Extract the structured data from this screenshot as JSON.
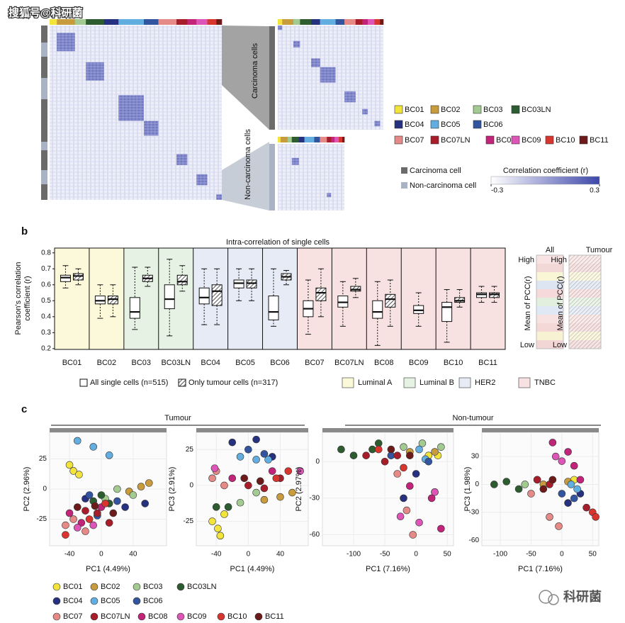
{
  "watermark": "搜狐号@科研菌",
  "panel_a": {
    "clusters": [
      "Carcinoma cells",
      "Non-carcinoma cells"
    ],
    "cell_types": [
      {
        "name": "Carcinoma cell",
        "color": "#6b6b6b"
      },
      {
        "name": "Non-carcinoma cell",
        "color": "#a9b3c4"
      }
    ],
    "colorbar": {
      "title": "Correlation coefficient (r)",
      "lim": [
        -0.3,
        0.3
      ],
      "ticks": [
        -0.3,
        0.3
      ],
      "colors": [
        "#ffffff",
        "#3d47aa"
      ]
    }
  },
  "chart_data": [
    {
      "type": "box",
      "label": "b",
      "title": "Intra-correlation of single cells",
      "ylabel": [
        "Pearson's correlation",
        "coefficient (r)"
      ],
      "categories": [
        "BC01",
        "BC02",
        "BC03",
        "BC03LN",
        "BC04",
        "BC05",
        "BC06",
        "BC07",
        "BC07LN",
        "BC08",
        "BC09",
        "BC10",
        "BC11"
      ],
      "ylim": [
        0.195,
        0.83
      ],
      "yticks": [
        0.2,
        0.3,
        0.4,
        0.5,
        0.6,
        0.7,
        0.8
      ],
      "subtypes": [
        {
          "name": "Luminal A",
          "color": "#fbf9d9",
          "categories": [
            "BC01",
            "BC02"
          ]
        },
        {
          "name": "Luminal B",
          "color": "#e6f2e3",
          "categories": [
            "BC03",
            "BC03LN"
          ]
        },
        {
          "name": "HER2",
          "color": "#e6ebf5",
          "categories": [
            "BC04",
            "BC05",
            "BC06"
          ]
        },
        {
          "name": "TNBC",
          "color": "#f8e1e1",
          "categories": [
            "BC07",
            "BC07LN",
            "BC08",
            "BC09",
            "BC10",
            "BC11"
          ]
        }
      ],
      "series": [
        {
          "name": "All single cells (n=515)",
          "hatch": false,
          "q1": [
            0.62,
            0.48,
            0.39,
            0.45,
            0.48,
            0.58,
            0.38,
            0.4,
            0.46,
            0.39,
            0.42,
            0.37,
            0.52
          ],
          "median": [
            0.645,
            0.5,
            0.43,
            0.51,
            0.52,
            0.61,
            0.43,
            0.45,
            0.49,
            0.43,
            0.44,
            0.46,
            0.54
          ],
          "q3": [
            0.66,
            0.53,
            0.52,
            0.6,
            0.58,
            0.63,
            0.53,
            0.5,
            0.53,
            0.5,
            0.47,
            0.49,
            0.55
          ],
          "min": [
            0.58,
            0.39,
            0.32,
            0.28,
            0.35,
            0.5,
            0.34,
            0.29,
            0.34,
            0.22,
            0.34,
            0.24,
            0.49
          ],
          "max": [
            0.72,
            0.6,
            0.71,
            0.76,
            0.7,
            0.7,
            0.7,
            0.63,
            0.62,
            0.62,
            0.55,
            0.57,
            0.59
          ]
        },
        {
          "name": "Only tumour cells (n=317)",
          "hatch": true,
          "q1": [
            0.63,
            0.48,
            0.62,
            0.6,
            0.47,
            0.58,
            0.63,
            0.5,
            0.56,
            0.46,
            null,
            0.49,
            0.52
          ],
          "median": [
            0.655,
            0.51,
            0.64,
            0.62,
            0.56,
            0.61,
            0.65,
            0.55,
            0.57,
            0.51,
            null,
            0.5,
            0.54
          ],
          "q3": [
            0.67,
            0.53,
            0.66,
            0.66,
            0.6,
            0.63,
            0.67,
            0.58,
            0.59,
            0.54,
            null,
            0.52,
            0.55
          ],
          "min": [
            0.6,
            0.4,
            0.59,
            0.56,
            0.35,
            0.5,
            0.6,
            0.4,
            0.52,
            0.34,
            null,
            0.46,
            0.49
          ],
          "max": [
            0.7,
            0.6,
            0.71,
            0.72,
            0.7,
            0.7,
            0.69,
            0.7,
            0.64,
            0.63,
            null,
            0.57,
            0.59
          ]
        }
      ],
      "side_legend": {
        "columns": [
          "All",
          "Tumour"
        ],
        "high": "High",
        "low": "Low",
        "axis_label": "Mean of PCC(r)"
      }
    },
    {
      "type": "scatter",
      "label": "c",
      "groups": [
        "Tumour",
        "Non-tumour"
      ],
      "panels": [
        {
          "xlabel": "PC1 (4.49%)",
          "ylabel": "PC2 (2.96%)",
          "xlim": [
            -65,
            82
          ],
          "ylim": [
            -47,
            47
          ],
          "xticks": [
            -40,
            0,
            40
          ],
          "yticks": [
            -25,
            0,
            25
          ]
        },
        {
          "xlabel": "PC1 (4.49%)",
          "ylabel": "PC3 (2.91%)",
          "xlim": [
            -65,
            75
          ],
          "ylim": [
            -42,
            37
          ],
          "xticks": [
            -40,
            0,
            40
          ],
          "yticks": [
            -25,
            0,
            25
          ]
        },
        {
          "xlabel": "PC1 (7.16%)",
          "ylabel": "PC2 (2.97%)",
          "xlim": [
            -150,
            60
          ],
          "ylim": [
            -69,
            24
          ],
          "xticks": [
            -100,
            -50,
            0,
            50
          ],
          "yticks": [
            -60,
            -30,
            0
          ]
        },
        {
          "xlabel": "PC1 (7.16%)",
          "ylabel": "PC3 (1.98%)",
          "xlim": [
            -130,
            60
          ],
          "ylim": [
            -66,
            56
          ],
          "xticks": [
            -100,
            -50,
            0,
            50
          ],
          "yticks": [
            -60,
            -30,
            0,
            30
          ]
        }
      ],
      "series": [
        {
          "name": "BC01",
          "color": "#f3e43c",
          "x": [
            [
              -40,
              -35,
              -28
            ],
            [
              -45,
              -38,
              -30,
              -35
            ],
            [
              20,
              35
            ],
            [
              20
            ]
          ],
          "y": [
            [
              20,
              15,
              12
            ],
            [
              -25,
              -30,
              -20,
              -35
            ],
            [
              5,
              5
            ],
            [
              5
            ]
          ]
        },
        {
          "name": "BC02",
          "color": "#c89b3c",
          "x": [
            [
              35,
              50,
              60
            ],
            [
              20,
              40,
              55
            ],
            [
              -10,
              30
            ],
            [
              -30,
              10
            ]
          ],
          "y": [
            [
              -2,
              2,
              5
            ],
            [
              -10,
              -8,
              -5
            ],
            [
              8,
              8
            ],
            [
              0,
              3
            ]
          ]
        },
        {
          "name": "BC03",
          "color": "#a3cb91",
          "x": [
            [
              20,
              40,
              5
            ],
            [
              -10,
              10
            ],
            [
              -20,
              10,
              40
            ],
            [
              -60,
              -40
            ]
          ],
          "y": [
            [
              0,
              -5,
              -8
            ],
            [
              -12,
              -5
            ],
            [
              12,
              15,
              12
            ],
            [
              0,
              5
            ]
          ]
        },
        {
          "name": "BC03LN",
          "color": "#2e5c31",
          "x": [
            [
              -10,
              0,
              10
            ],
            [
              -40,
              -25
            ],
            [
              -120,
              -100,
              -70,
              -60
            ],
            [
              -110,
              -90,
              -70
            ]
          ],
          "y": [
            [
              -10,
              -5,
              -12
            ],
            [
              -15,
              -15
            ],
            [
              10,
              5,
              10,
              15
            ],
            [
              0,
              3,
              -5
            ]
          ]
        },
        {
          "name": "BC04",
          "color": "#26317f",
          "x": [
            [
              -20,
              30,
              55
            ],
            [
              -20,
              10,
              30
            ],
            [
              0,
              30,
              -20
            ],
            [
              10,
              30
            ]
          ],
          "y": [
            [
              -8,
              -15,
              -12
            ],
            [
              30,
              32,
              20
            ],
            [
              -10,
              -25,
              -30
            ],
            [
              -20,
              -10
            ]
          ]
        },
        {
          "name": "BC05",
          "color": "#63aee0",
          "x": [
            [
              -30,
              -10,
              10
            ],
            [
              -10,
              10,
              25
            ],
            [
              5,
              15
            ],
            [
              15,
              25
            ]
          ],
          "y": [
            [
              40,
              35,
              28
            ],
            [
              20,
              18,
              18
            ],
            [
              10,
              2
            ],
            [
              0,
              -5
            ]
          ]
        },
        {
          "name": "BC06",
          "color": "#33549f",
          "x": [
            [
              -15,
              20,
              -5
            ],
            [
              0,
              20
            ],
            [
              -40,
              20
            ],
            [
              0,
              20
            ]
          ],
          "y": [
            [
              -5,
              -10,
              -22
            ],
            [
              25,
              22
            ],
            [
              5,
              0
            ],
            [
              -10,
              -15
            ]
          ]
        },
        {
          "name": "BC07",
          "color": "#e58a86",
          "x": [
            [
              -45,
              -35,
              -20
            ],
            [
              -45,
              -40,
              -30
            ],
            [
              -15,
              -5,
              -30
            ],
            [
              -20,
              -5,
              -50
            ]
          ],
          "y": [
            [
              -30,
              -25,
              -35
            ],
            [
              5,
              10,
              0
            ],
            [
              -40,
              -60,
              -10
            ],
            [
              -35,
              -45,
              -10
            ]
          ]
        },
        {
          "name": "BC07LN",
          "color": "#a81d2a",
          "x": [
            [
              -20,
              -5,
              10
            ],
            [
              0,
              20,
              40
            ],
            [
              -80,
              -50,
              -30
            ],
            [
              -40,
              -20,
              40
            ]
          ],
          "y": [
            [
              -18,
              -20,
              -28
            ],
            [
              0,
              -2,
              5
            ],
            [
              5,
              0,
              5
            ],
            [
              5,
              0,
              -25
            ]
          ]
        },
        {
          "name": "BC08",
          "color": "#c2247a",
          "x": [
            [
              -40,
              -25,
              0
            ],
            [
              -20,
              30
            ],
            [
              -10,
              25,
              40
            ],
            [
              -15,
              10,
              20,
              30
            ]
          ],
          "y": [
            [
              -20,
              -28,
              -15
            ],
            [
              5,
              10
            ],
            [
              -20,
              -30,
              -55
            ],
            [
              45,
              35,
              20,
              5
            ]
          ]
        },
        {
          "name": "BC09",
          "color": "#dc55b7",
          "x": [
            [
              -30,
              -10
            ],
            [
              65,
              -42
            ],
            [
              -25,
              5,
              30
            ],
            [
              0,
              -10
            ]
          ],
          "y": [
            [
              -32,
              -30
            ],
            [
              10,
              12
            ],
            [
              -45,
              -50,
              -25
            ],
            [
              25,
              30
            ]
          ]
        },
        {
          "name": "BC10",
          "color": "#d8352f",
          "x": [
            [
              -45,
              -15,
              5
            ],
            [
              35,
              50
            ],
            [
              -60,
              -20
            ],
            [
              50,
              55
            ]
          ],
          "y": [
            [
              -38,
              -25,
              -12
            ],
            [
              5,
              10
            ],
            [
              10,
              -5
            ],
            [
              -30,
              -35
            ]
          ]
        },
        {
          "name": "BC11",
          "color": "#6d1a1a",
          "x": [
            [
              -30,
              -8,
              15
            ],
            [
              -5,
              15
            ],
            [
              -40,
              -10
            ],
            [
              -30,
              -15
            ]
          ],
          "y": [
            [
              -15,
              -14,
              -20
            ],
            [
              5,
              3
            ],
            [
              10,
              5
            ],
            [
              -5,
              5
            ]
          ]
        }
      ]
    }
  ],
  "footer_watermark": "科研菌"
}
